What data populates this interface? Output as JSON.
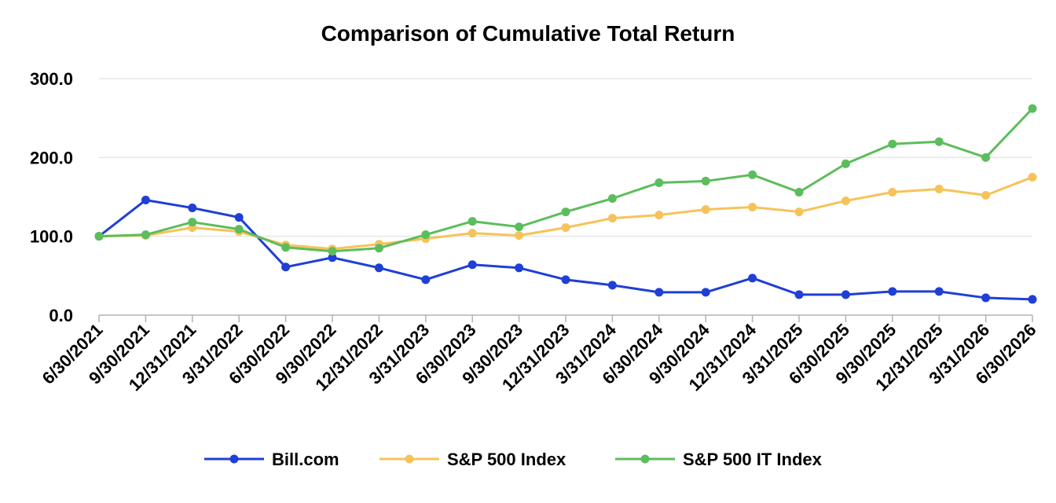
{
  "chart_data": {
    "type": "line",
    "title": "Comparison of Cumulative Total Return",
    "xlabel": "",
    "ylabel": "",
    "ylim": [
      0,
      300
    ],
    "yticks": [
      "0.0",
      "100.0",
      "200.0",
      "300.0"
    ],
    "grid": true,
    "legend_position": "bottom",
    "categories": [
      "6/30/2021",
      "9/30/2021",
      "12/31/2021",
      "3/31/2022",
      "6/30/2022",
      "9/30/2022",
      "12/31/2022",
      "3/31/2023",
      "6/30/2023",
      "9/30/2023",
      "12/31/2023",
      "3/31/2024",
      "6/30/2024",
      "9/30/2024",
      "12/31/2024",
      "3/31/2025",
      "6/30/2025",
      "9/30/2025",
      "12/31/2025",
      "3/31/2026",
      "6/30/2026"
    ],
    "series": [
      {
        "name": "Bill.com",
        "color": "#1f3fd6",
        "values": [
          100,
          146,
          136,
          124,
          61,
          73,
          60,
          45,
          64,
          60,
          45,
          38,
          29,
          29,
          47,
          26,
          26,
          30,
          30,
          22,
          20
        ]
      },
      {
        "name": "S&P 500 Index",
        "color": "#f6c35a",
        "values": [
          100,
          101,
          111,
          106,
          89,
          84,
          90,
          97,
          104,
          101,
          111,
          123,
          127,
          134,
          137,
          131,
          145,
          156,
          160,
          152,
          175
        ]
      },
      {
        "name": "S&P 500 IT Index",
        "color": "#5cbd5c",
        "values": [
          100,
          102,
          118,
          109,
          86,
          81,
          85,
          102,
          119,
          112,
          131,
          148,
          168,
          170,
          178,
          156,
          192,
          217,
          220,
          200,
          262
        ]
      }
    ]
  }
}
